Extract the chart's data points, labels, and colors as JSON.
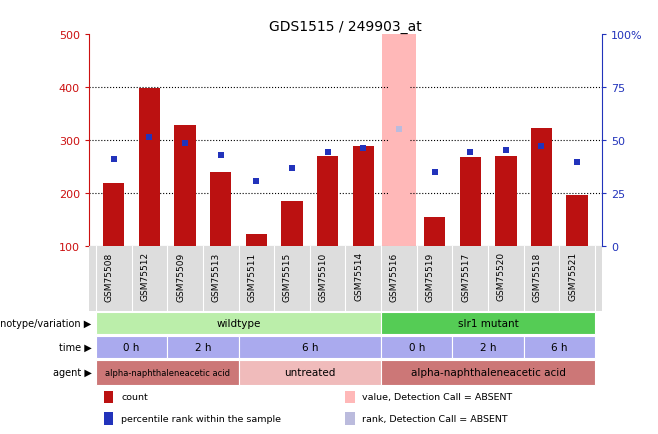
{
  "title": "GDS1515 / 249903_at",
  "samples": [
    "GSM75508",
    "GSM75512",
    "GSM75509",
    "GSM75513",
    "GSM75511",
    "GSM75515",
    "GSM75510",
    "GSM75514",
    "GSM75516",
    "GSM75519",
    "GSM75517",
    "GSM75520",
    "GSM75518",
    "GSM75521"
  ],
  "counts": [
    218,
    398,
    328,
    240,
    122,
    185,
    270,
    288,
    500,
    155,
    268,
    270,
    322,
    197
  ],
  "percentile_ranks": [
    265,
    305,
    295,
    272,
    222,
    248,
    278,
    284,
    320,
    240,
    278,
    282,
    288,
    258
  ],
  "absent_bar_idx": 8,
  "absent_count": 500,
  "absent_rank": 320,
  "ylim_left": [
    100,
    500
  ],
  "ylim_right": [
    0,
    100
  ],
  "yticks_left": [
    100,
    200,
    300,
    400,
    500
  ],
  "yticks_right": [
    0,
    25,
    50,
    75,
    100
  ],
  "bar_color": "#bb1111",
  "rank_color": "#2233bb",
  "absent_bar_color": "#ffb8b8",
  "absent_rank_color": "#bbbbdd",
  "background_color": "#ffffff",
  "genotype_wildtype_color": "#bbeeaa",
  "genotype_mutant_color": "#55cc55",
  "time_color": "#aaaaee",
  "agent_treated_color": "#cc7777",
  "agent_untreated_color": "#f0bbbb",
  "genotype_groups": [
    {
      "label": "wildtype",
      "start": 0,
      "end": 7
    },
    {
      "label": "slr1 mutant",
      "start": 8,
      "end": 13
    }
  ],
  "time_groups": [
    {
      "label": "0 h",
      "start": 0,
      "end": 1
    },
    {
      "label": "2 h",
      "start": 2,
      "end": 3
    },
    {
      "label": "6 h",
      "start": 4,
      "end": 7
    },
    {
      "label": "0 h",
      "start": 8,
      "end": 9
    },
    {
      "label": "2 h",
      "start": 10,
      "end": 11
    },
    {
      "label": "6 h",
      "start": 12,
      "end": 13
    }
  ],
  "agent_groups": [
    {
      "label": "alpha-naphthaleneacetic acid",
      "start": 0,
      "end": 3,
      "color": "#cc7777"
    },
    {
      "label": "untreated",
      "start": 4,
      "end": 7,
      "color": "#f0bbbb"
    },
    {
      "label": "alpha-naphthaleneacetic acid",
      "start": 8,
      "end": 13,
      "color": "#cc7777"
    }
  ],
  "legend_items": [
    {
      "color": "#bb1111",
      "label": "count",
      "row": 0,
      "col": 0
    },
    {
      "color": "#2233bb",
      "label": "percentile rank within the sample",
      "row": 1,
      "col": 0
    },
    {
      "color": "#ffb8b8",
      "label": "value, Detection Call = ABSENT",
      "row": 0,
      "col": 1
    },
    {
      "color": "#bbbbdd",
      "label": "rank, Detection Call = ABSENT",
      "row": 1,
      "col": 1
    }
  ]
}
